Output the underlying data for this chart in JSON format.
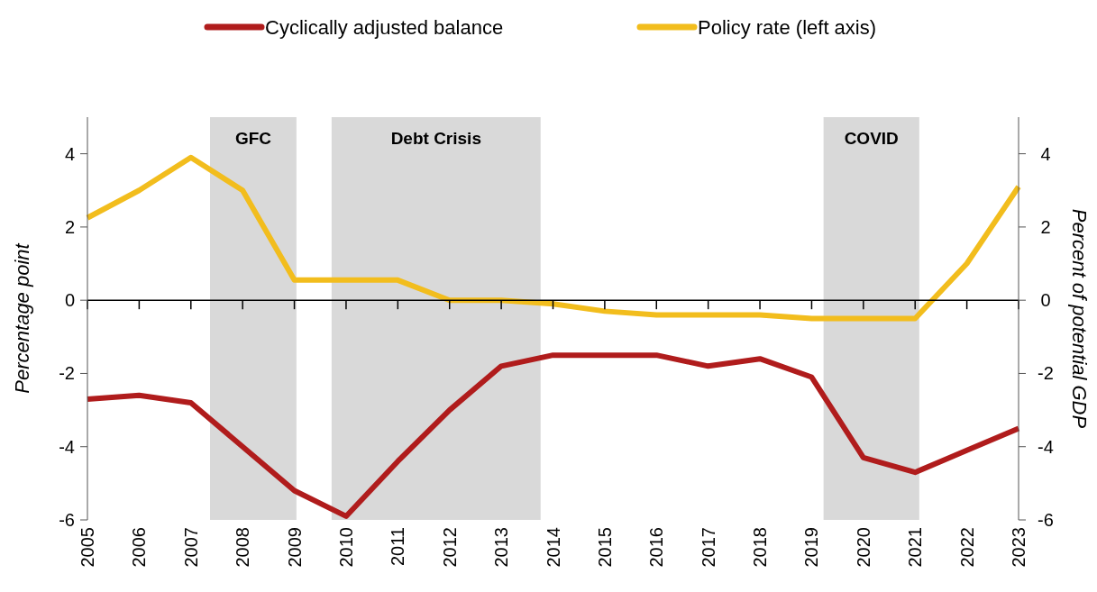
{
  "chart_data": {
    "type": "line",
    "ylabel": "Percentage point",
    "y2label": "Percent of potential GDP",
    "x": [
      2005,
      2006,
      2007,
      2008,
      2009,
      2010,
      2011,
      2012,
      2013,
      2014,
      2015,
      2016,
      2017,
      2018,
      2019,
      2020,
      2021,
      2022,
      2023
    ],
    "xlim": [
      2005,
      2023
    ],
    "xticks": [
      2005,
      2006,
      2007,
      2008,
      2009,
      2010,
      2011,
      2012,
      2013,
      2014,
      2015,
      2016,
      2017,
      2018,
      2019,
      2020,
      2021,
      2022,
      2023
    ],
    "ylim": [
      -6,
      5
    ],
    "yticks": [
      -6,
      -4,
      -2,
      0,
      2,
      4
    ],
    "y2lim": [
      -6,
      5
    ],
    "y2ticks": [
      -6,
      -4,
      -2,
      0,
      2,
      4
    ],
    "series": [
      {
        "name": "Cyclically adjusted balance",
        "color": "#b01c1c",
        "axis": "y2",
        "values": [
          -2.7,
          -2.6,
          -2.8,
          -4.0,
          -5.2,
          -5.9,
          -4.4,
          -3.0,
          -1.8,
          -1.5,
          -1.5,
          -1.5,
          -1.8,
          -1.6,
          -2.1,
          -4.3,
          -4.7,
          -4.1,
          -3.5
        ]
      },
      {
        "name": "Policy rate (left axis)",
        "color": "#f2bd1d",
        "values": [
          2.25,
          3.0,
          3.9,
          3.0,
          0.55,
          0.55,
          0.55,
          0.0,
          0.0,
          -0.1,
          -0.3,
          -0.4,
          -0.4,
          -0.4,
          -0.5,
          -0.5,
          -0.5,
          1.0,
          3.1
        ]
      }
    ],
    "bands": [
      {
        "axis": "x",
        "from": 2007.37,
        "to": 2009.04,
        "label": "GFC",
        "color": "#d9d9d9"
      },
      {
        "axis": "x",
        "from": 2009.72,
        "to": 2013.76,
        "label": "Debt Crisis",
        "color": "#d9d9d9"
      },
      {
        "axis": "x",
        "from": 2019.23,
        "to": 2021.08,
        "label": "COVID",
        "color": "#d9d9d9"
      }
    ],
    "legend": "top",
    "line_style": "solid",
    "marker": "none"
  }
}
